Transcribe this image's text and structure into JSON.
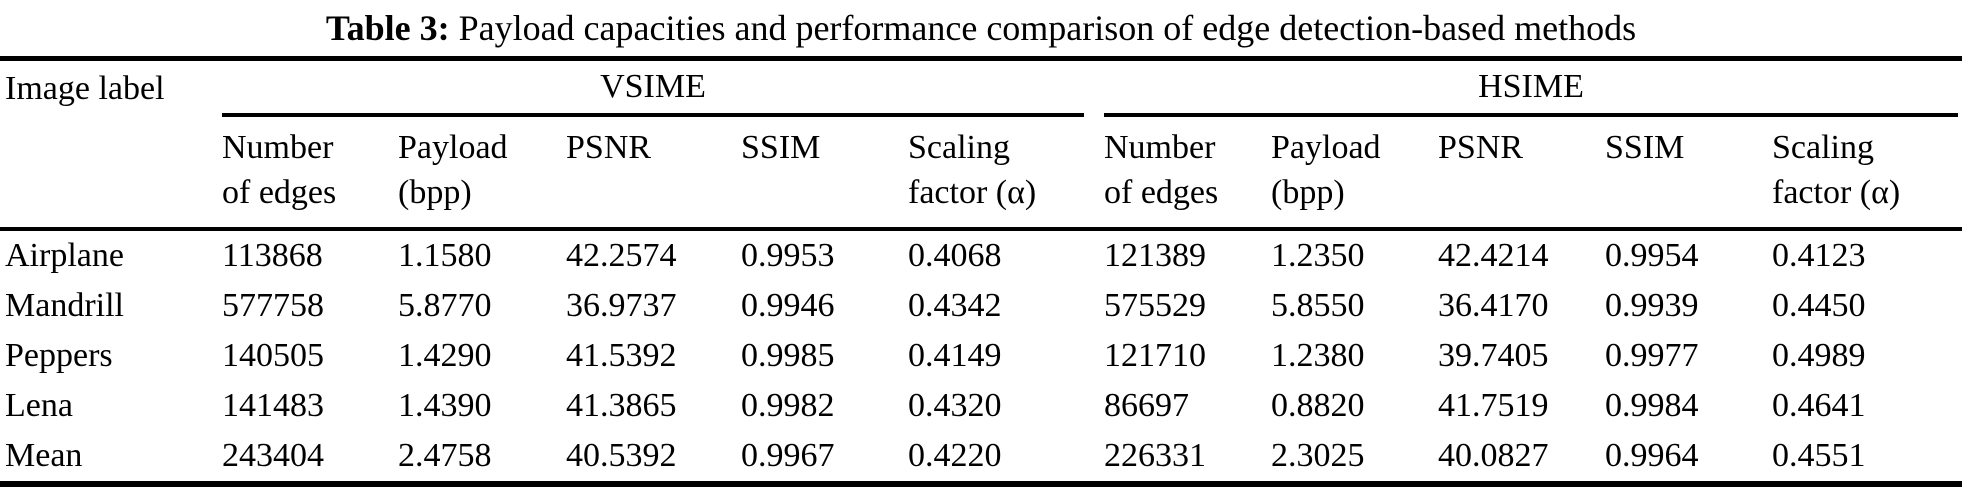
{
  "title": {
    "label": "Table 3:",
    "text": " Payload capacities and performance comparison of edge detection-based methods"
  },
  "colors": {
    "text": "#000000",
    "background": "#ffffff",
    "rule": "#000000"
  },
  "table": {
    "row_header": "Image label",
    "groups": [
      {
        "name": "VSIME"
      },
      {
        "name": "HSIME"
      }
    ],
    "subcolumns": [
      {
        "l1": "Number",
        "l2": "of edges"
      },
      {
        "l1": "Payload",
        "l2": "(bpp)"
      },
      {
        "l1": "PSNR",
        "l2": ""
      },
      {
        "l1": "SSIM",
        "l2": ""
      },
      {
        "l1": "Scaling",
        "l2": "factor (α)"
      }
    ],
    "rows": [
      {
        "label": "Airplane",
        "vsime": {
          "edges": "113868",
          "payload": "1.1580",
          "psnr": "42.2574",
          "ssim": "0.9953",
          "alpha": "0.4068"
        },
        "hsime": {
          "edges": "121389",
          "payload": "1.2350",
          "psnr": "42.4214",
          "ssim": "0.9954",
          "alpha": "0.4123"
        }
      },
      {
        "label": "Mandrill",
        "vsime": {
          "edges": "577758",
          "payload": "5.8770",
          "psnr": "36.9737",
          "ssim": "0.9946",
          "alpha": "0.4342"
        },
        "hsime": {
          "edges": "575529",
          "payload": "5.8550",
          "psnr": "36.4170",
          "ssim": "0.9939",
          "alpha": "0.4450"
        }
      },
      {
        "label": "Peppers",
        "vsime": {
          "edges": "140505",
          "payload": "1.4290",
          "psnr": "41.5392",
          "ssim": "0.9985",
          "alpha": "0.4149"
        },
        "hsime": {
          "edges": "121710",
          "payload": "1.2380",
          "psnr": "39.7405",
          "ssim": "0.9977",
          "alpha": "0.4989"
        }
      },
      {
        "label": "Lena",
        "vsime": {
          "edges": "141483",
          "payload": "1.4390",
          "psnr": "41.3865",
          "ssim": "0.9982",
          "alpha": "0.4320"
        },
        "hsime": {
          "edges": "86697",
          "payload": "0.8820",
          "psnr": "41.7519",
          "ssim": "0.9984",
          "alpha": "0.4641"
        }
      },
      {
        "label": "Mean",
        "vsime": {
          "edges": "243404",
          "payload": "2.4758",
          "psnr": "40.5392",
          "ssim": "0.9967",
          "alpha": "0.4220"
        },
        "hsime": {
          "edges": "226331",
          "payload": "2.3025",
          "psnr": "40.0827",
          "ssim": "0.9964",
          "alpha": "0.4551"
        }
      }
    ]
  }
}
